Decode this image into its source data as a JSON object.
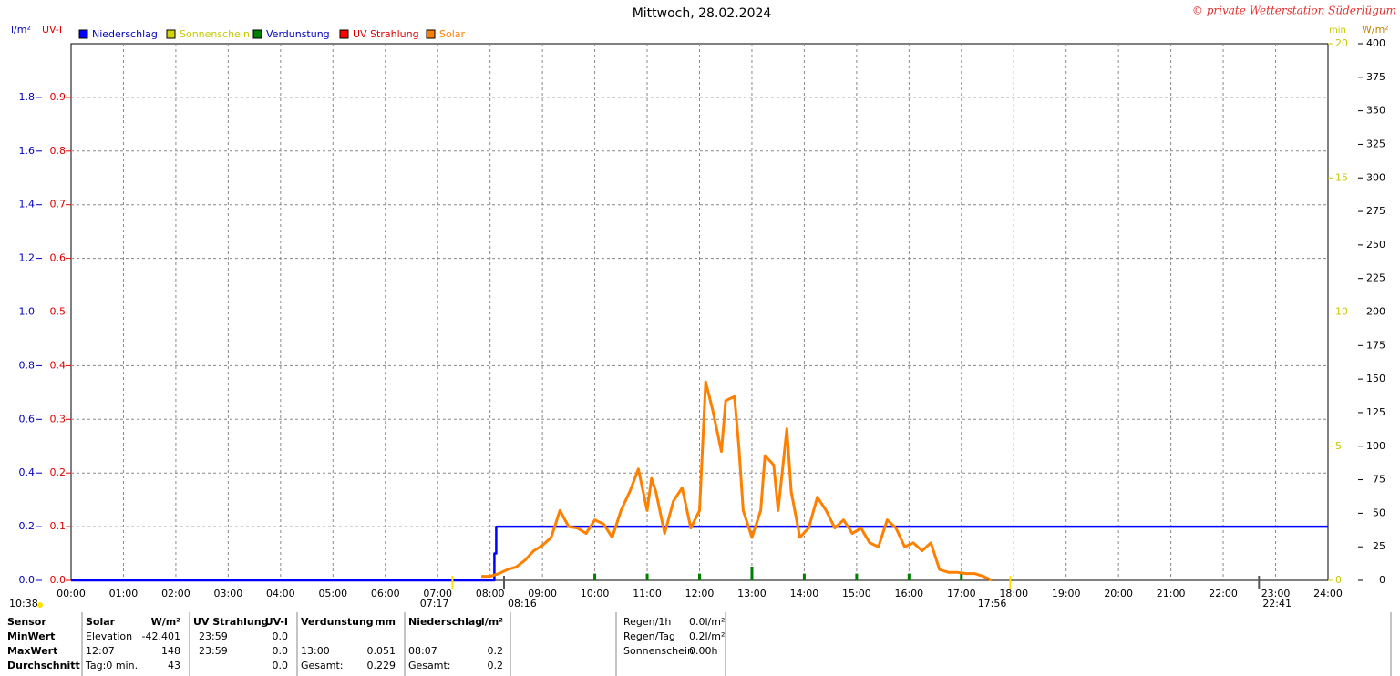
{
  "chart_data": {
    "type": "line",
    "title": "Mittwoch, 28.02.2024",
    "copyright": "© private Wetterstation Süderlügum",
    "axis_labels": {
      "y": "l/m²",
      "uv": "UV-I",
      "y2": "min",
      "y3": "W/m²"
    },
    "xlim": [
      0,
      24
    ],
    "xticks": [
      {
        "value": 0,
        "label": "00:00"
      },
      {
        "value": 1,
        "label": "01:00"
      },
      {
        "value": 2,
        "label": "02:00"
      },
      {
        "value": 3,
        "label": "03:00"
      },
      {
        "value": 4,
        "label": "04:00"
      },
      {
        "value": 5,
        "label": "05:00"
      },
      {
        "value": 6,
        "label": "06:00"
      },
      {
        "value": 7,
        "label": "07:00"
      },
      {
        "value": 8,
        "label": "08:00"
      },
      {
        "value": 9,
        "label": "09:00"
      },
      {
        "value": 10,
        "label": "10:00"
      },
      {
        "value": 11,
        "label": "11:00"
      },
      {
        "value": 12,
        "label": "12:00"
      },
      {
        "value": 13,
        "label": "13:00"
      },
      {
        "value": 14,
        "label": "14:00"
      },
      {
        "value": 15,
        "label": "15:00"
      },
      {
        "value": 16,
        "label": "16:00"
      },
      {
        "value": 17,
        "label": "17:00"
      },
      {
        "value": 18,
        "label": "18:00"
      },
      {
        "value": 19,
        "label": "19:00"
      },
      {
        "value": 20,
        "label": "20:00"
      },
      {
        "value": 21,
        "label": "21:00"
      },
      {
        "value": 22,
        "label": "22:00"
      },
      {
        "value": 23,
        "label": "23:00"
      },
      {
        "value": 24,
        "label": "24:00"
      }
    ],
    "ylim": [
      0,
      2
    ],
    "yticks": [
      {
        "value": 0,
        "label": "0.0"
      },
      0.2,
      0.4,
      0.6,
      0.8,
      {
        "value": 1,
        "label": "1.0"
      },
      1.2,
      1.4,
      1.6,
      1.8
    ],
    "uvlim": [
      0,
      1
    ],
    "uvticks": [
      {
        "value": 0,
        "label": "0.0"
      },
      0.1,
      0.2,
      0.3,
      0.4,
      0.5,
      0.6,
      0.7,
      0.8,
      0.9
    ],
    "y2lim": [
      0,
      20
    ],
    "y2ticks": [
      0,
      5,
      10,
      15,
      20
    ],
    "y3lim": [
      0,
      400
    ],
    "y3ticks": [
      0,
      25,
      50,
      75,
      100,
      125,
      150,
      175,
      200,
      225,
      250,
      275,
      300,
      325,
      350,
      375,
      400
    ],
    "grid": true,
    "series": [
      {
        "name": "Niederschlag",
        "color": "#0000ff",
        "label_color": "#0000c0",
        "axis": "y",
        "kind": "line",
        "x": [
          0,
          8.083,
          8.083,
          8.117,
          8.117,
          24
        ],
        "values": [
          0,
          0,
          0.1,
          0.1,
          0.2,
          0.2
        ]
      },
      {
        "name": "Sonnenschein",
        "color": "#d4d400",
        "label_color": "#c8c800",
        "axis": "y2",
        "kind": "line",
        "x": [],
        "values": []
      },
      {
        "name": "Verdunstung",
        "color": "#008000",
        "label_color": "#0000c0",
        "axis": "y",
        "kind": "bar",
        "x": [
          10,
          11,
          12,
          13,
          14,
          15,
          16,
          17
        ],
        "values": [
          0.025,
          0.025,
          0.025,
          0.051,
          0.025,
          0.025,
          0.025,
          0.025
        ]
      },
      {
        "name": "UV Strahlung",
        "color": "#ff0000",
        "label_color": "#e00000",
        "axis": "uv",
        "kind": "line",
        "x": [],
        "values": []
      },
      {
        "name": "Solar",
        "color": "#ff8000",
        "label_color": "#ff8000",
        "axis": "y3",
        "kind": "line",
        "x": [
          7.833,
          8,
          8.167,
          8.333,
          8.5,
          8.667,
          8.833,
          9,
          9.167,
          9.333,
          9.5,
          9.667,
          9.833,
          10,
          10.167,
          10.333,
          10.5,
          10.667,
          10.833,
          11,
          11.083,
          11.167,
          11.333,
          11.5,
          11.667,
          11.833,
          12,
          12.117,
          12.25,
          12.417,
          12.5,
          12.667,
          12.75,
          12.833,
          13,
          13.167,
          13.25,
          13.417,
          13.5,
          13.667,
          13.75,
          13.917,
          14.083,
          14.25,
          14.417,
          14.583,
          14.75,
          14.917,
          15.083,
          15.25,
          15.417,
          15.583,
          15.75,
          15.917,
          16.083,
          16.25,
          16.417,
          16.583,
          16.75,
          16.917,
          17.083,
          17.25,
          17.417,
          17.583
        ],
        "values": [
          3,
          3,
          5,
          8,
          10,
          15,
          22,
          26,
          32,
          52,
          40,
          39,
          35,
          45,
          42,
          32,
          52,
          66,
          83,
          52,
          76,
          66,
          35,
          59,
          69,
          39,
          52,
          148,
          127,
          96,
          134,
          137,
          100,
          52,
          32,
          52,
          93,
          86,
          52,
          113,
          66,
          32,
          39,
          62,
          52,
          39,
          45,
          35,
          39,
          28,
          25,
          45,
          39,
          25,
          28,
          22,
          28,
          8,
          6,
          6,
          5,
          5,
          3,
          0
        ]
      }
    ],
    "moon_label": "10:38",
    "annotations": [
      {
        "value": 7.283,
        "label": "07:17"
      },
      {
        "value": 8.267,
        "label": "08:16"
      },
      {
        "value": 17.933,
        "label": "17:56"
      },
      {
        "value": 22.683,
        "label": "22:41"
      }
    ]
  },
  "table": {
    "header": [
      "Sensor",
      "Solar",
      "W/m²",
      "UV Strahlung",
      "UV-I",
      "Verdunstung",
      "mm",
      "Niederschlag",
      "l/m²"
    ],
    "rows": [
      [
        "MinWert",
        "Elevation",
        "-42.401",
        "23:59",
        "0.0",
        null,
        null,
        null,
        null
      ],
      [
        "MaxWert",
        "12:07",
        "148",
        "23:59",
        "0.0",
        "13:00",
        "0.051",
        "08:07",
        "0.2"
      ],
      [
        "Durchschnitt",
        "Tag:0 min.",
        "43",
        null,
        "0.0",
        "Gesamt:",
        "0.229",
        "Gesamt:",
        "0.2"
      ]
    ]
  },
  "stats": [
    [
      "Regen/1h",
      "0.0l/m²"
    ],
    [
      "Regen/Tag",
      "0.2l/m²"
    ],
    [
      "Sonnenschein",
      "0.00h"
    ]
  ]
}
